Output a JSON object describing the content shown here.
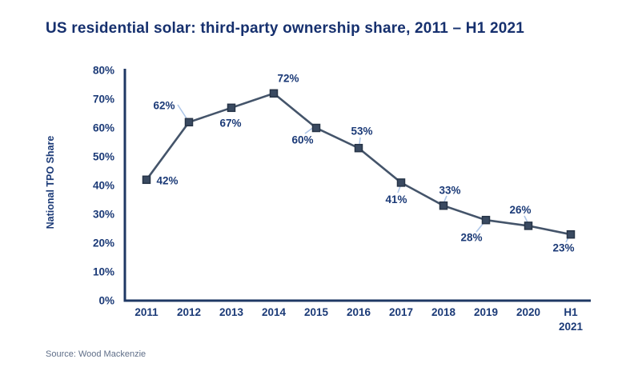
{
  "page": {
    "title": "US residential solar: third-party ownership share, 2011 – H1 2021",
    "source": "Source: Wood Mackenzie"
  },
  "chart_data": {
    "type": "line",
    "title": "US residential solar: third-party ownership share, 2011 – H1 2021",
    "xlabel": "",
    "ylabel": "National TPO Share",
    "categories": [
      "2011",
      "2012",
      "2013",
      "2014",
      "2015",
      "2016",
      "2017",
      "2018",
      "2019",
      "2020",
      "H1 2021"
    ],
    "values": [
      42,
      62,
      67,
      72,
      60,
      53,
      41,
      33,
      28,
      26,
      23
    ],
    "point_labels": [
      "42%",
      "62%",
      "67%",
      "72%",
      "60%",
      "53%",
      "41%",
      "33%",
      "28%",
      "26%",
      "23%"
    ],
    "ylim": [
      0,
      80
    ],
    "yticks": [
      0,
      10,
      20,
      30,
      40,
      50,
      60,
      70,
      80
    ],
    "ytick_labels": [
      "0%",
      "10%",
      "20%",
      "30%",
      "40%",
      "50%",
      "60%",
      "70%",
      "80%"
    ],
    "grid": false,
    "legend": "none",
    "marker": "square",
    "colors": {
      "title_text": "#16306e",
      "axis": "#1f3864",
      "tick_text": "#1b3a77",
      "series_line": "#44546a",
      "marker_fill": "#3a4a61",
      "marker_stroke": "#273447",
      "leader_line": "#aec6e8",
      "source_text": "#5f6e88"
    }
  }
}
